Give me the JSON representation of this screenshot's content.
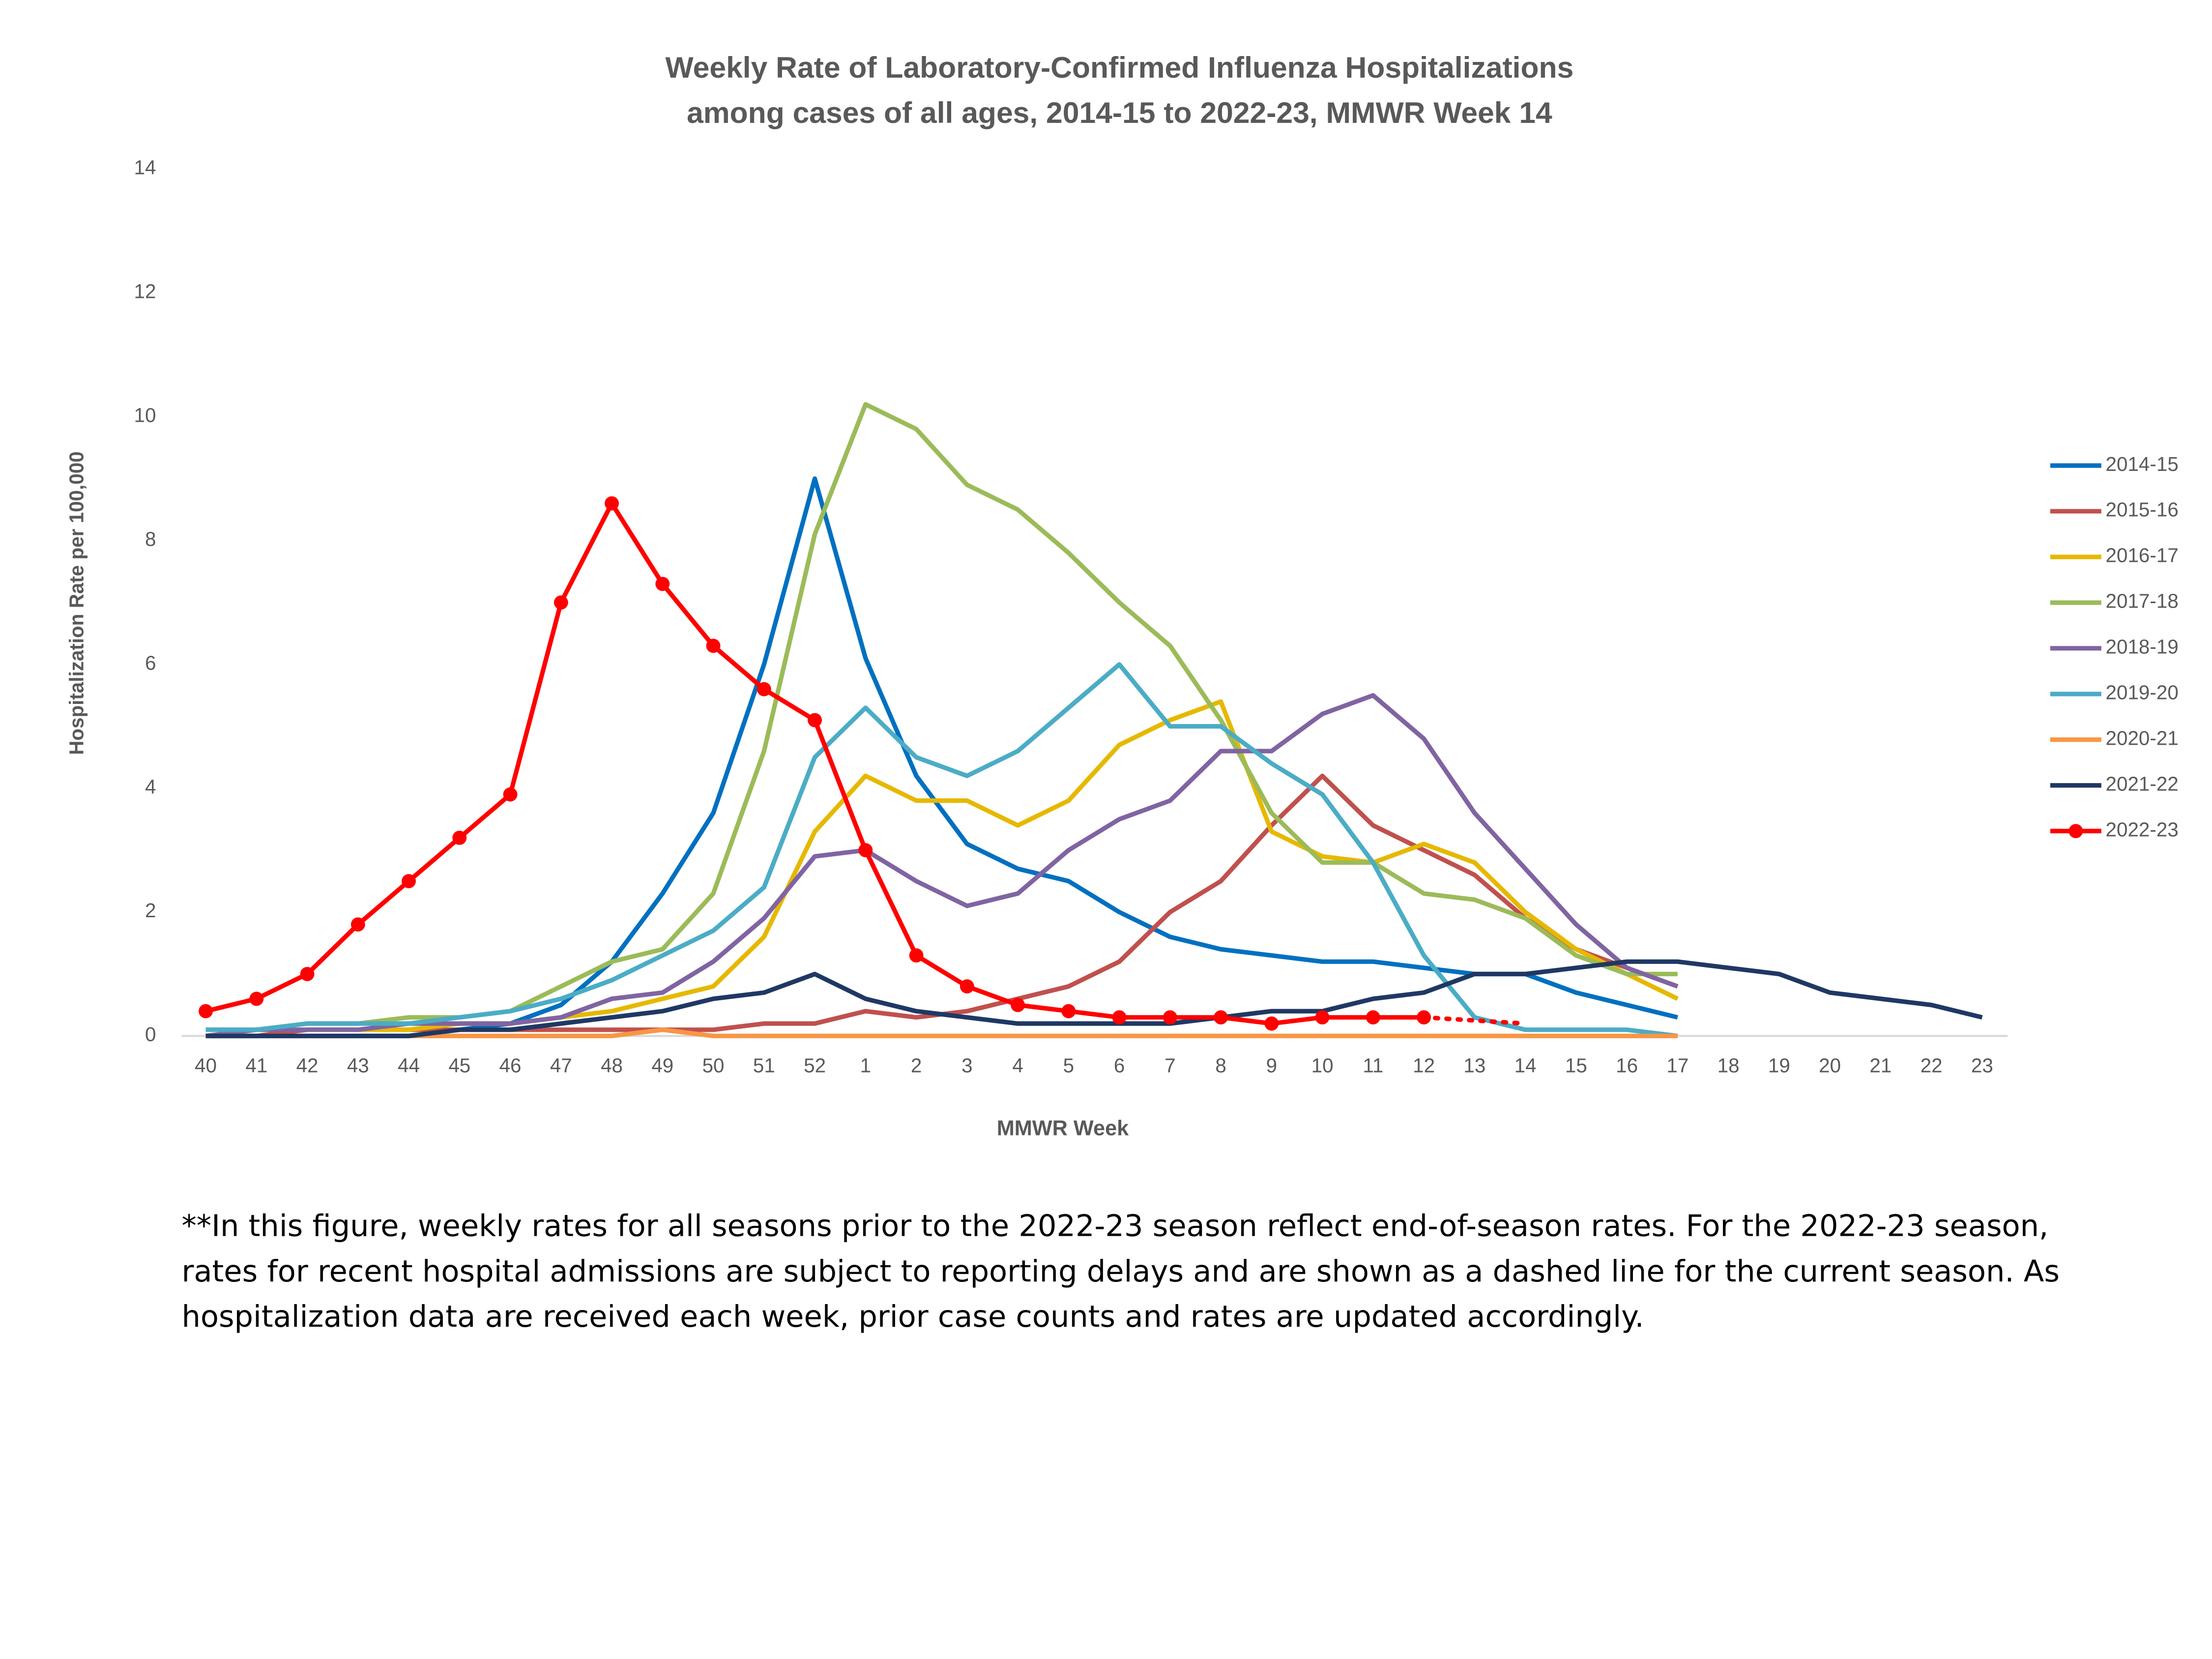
{
  "chart_data": {
    "type": "line",
    "title": [
      "Weekly Rate of Laboratory-Confirmed Influenza Hospitalizations",
      "among cases of all ages, 2014-15 to 2022-23, MMWR Week 14"
    ],
    "x_label": "MMWR Week",
    "y_label": "Hospitalization  Rate per 100,000",
    "categories": [
      "40",
      "41",
      "42",
      "43",
      "44",
      "45",
      "46",
      "47",
      "48",
      "49",
      "50",
      "51",
      "52",
      "1",
      "2",
      "3",
      "4",
      "5",
      "6",
      "7",
      "8",
      "9",
      "10",
      "11",
      "12",
      "13",
      "14",
      "15",
      "16",
      "17",
      "18",
      "19",
      "20",
      "21",
      "22",
      "23"
    ],
    "ylim": [
      0,
      14
    ],
    "yticks": [
      0,
      2,
      4,
      6,
      8,
      10,
      12,
      14
    ],
    "grid": false,
    "legend": "right",
    "series": [
      {
        "name": "2014-15",
        "color": "#0070c0",
        "values": [
          0,
          0,
          0,
          0,
          0,
          0.1,
          0.2,
          0.5,
          1.2,
          2.3,
          3.6,
          6.0,
          9.0,
          6.1,
          4.2,
          3.1,
          2.7,
          2.5,
          2.0,
          1.6,
          1.4,
          1.3,
          1.2,
          1.2,
          1.1,
          1.0,
          1.0,
          0.7,
          0.5,
          0.3,
          null,
          null,
          null,
          null,
          null,
          null
        ]
      },
      {
        "name": "2015-16",
        "color": "#c0504d",
        "values": [
          0,
          0,
          0.1,
          0.1,
          0.1,
          0.1,
          0.1,
          0.1,
          0.1,
          0.1,
          0.1,
          0.2,
          0.2,
          0.4,
          0.3,
          0.4,
          0.6,
          0.8,
          1.2,
          2.0,
          2.5,
          3.4,
          4.2,
          3.4,
          3.0,
          2.6,
          1.9,
          1.4,
          1.1,
          0.8,
          null,
          null,
          null,
          null,
          null,
          null
        ]
      },
      {
        "name": "2016-17",
        "color": "#e6b800",
        "values": [
          0,
          0.1,
          0.1,
          0.1,
          0.1,
          0.2,
          0.2,
          0.3,
          0.4,
          0.6,
          0.8,
          1.6,
          3.3,
          4.2,
          3.8,
          3.8,
          3.4,
          3.8,
          4.7,
          5.1,
          5.4,
          3.3,
          2.9,
          2.8,
          3.1,
          2.8,
          2.0,
          1.4,
          1.0,
          0.6,
          null,
          null,
          null,
          null,
          null,
          null
        ]
      },
      {
        "name": "2017-18",
        "color": "#9bbb59",
        "values": [
          0.1,
          0.1,
          0.2,
          0.2,
          0.3,
          0.3,
          0.4,
          0.8,
          1.2,
          1.4,
          2.3,
          4.6,
          8.1,
          10.2,
          9.8,
          8.9,
          8.5,
          7.8,
          7.0,
          6.3,
          5.1,
          3.6,
          2.8,
          2.8,
          2.3,
          2.2,
          1.9,
          1.3,
          1.0,
          1.0,
          null,
          null,
          null,
          null,
          null,
          null
        ]
      },
      {
        "name": "2018-19",
        "color": "#8064a2",
        "values": [
          0,
          0.1,
          0.1,
          0.1,
          0.2,
          0.2,
          0.2,
          0.3,
          0.6,
          0.7,
          1.2,
          1.9,
          2.9,
          3.0,
          2.5,
          2.1,
          2.3,
          3.0,
          3.5,
          3.8,
          4.6,
          4.6,
          5.2,
          5.5,
          4.8,
          3.6,
          2.7,
          1.8,
          1.1,
          0.8,
          null,
          null,
          null,
          null,
          null,
          null
        ]
      },
      {
        "name": "2019-20",
        "color": "#4bacc6",
        "values": [
          0.1,
          0.1,
          0.2,
          0.2,
          0.2,
          0.3,
          0.4,
          0.6,
          0.9,
          1.3,
          1.7,
          2.4,
          4.5,
          5.3,
          4.5,
          4.2,
          4.6,
          5.3,
          6.0,
          5.0,
          5.0,
          4.4,
          3.9,
          2.8,
          1.3,
          0.3,
          0.1,
          0.1,
          0.1,
          0,
          null,
          null,
          null,
          null,
          null,
          null
        ]
      },
      {
        "name": "2020-21",
        "color": "#f79646",
        "values": [
          0,
          0,
          0,
          0,
          0,
          0,
          0,
          0,
          0,
          0.1,
          0,
          0,
          0,
          0,
          0,
          0,
          0,
          0,
          0,
          0,
          0,
          0,
          0,
          0,
          0,
          0,
          0,
          0,
          0,
          0,
          null,
          null,
          null,
          null,
          null,
          null
        ]
      },
      {
        "name": "2021-22",
        "color": "#1f3864",
        "values": [
          0,
          0,
          0,
          0,
          0,
          0.1,
          0.1,
          0.2,
          0.3,
          0.4,
          0.6,
          0.7,
          1.0,
          0.6,
          0.4,
          0.3,
          0.2,
          0.2,
          0.2,
          0.2,
          0.3,
          0.4,
          0.4,
          0.6,
          0.7,
          1.0,
          1.0,
          1.1,
          1.2,
          1.2,
          1.1,
          1.0,
          0.7,
          0.6,
          0.5,
          0.3
        ]
      },
      {
        "name": "2022-23",
        "color": "#ff0000",
        "markers": true,
        "dotted_from": "12",
        "values": [
          0.4,
          0.6,
          1.0,
          1.8,
          2.5,
          3.2,
          3.9,
          7.0,
          8.6,
          7.3,
          6.3,
          5.6,
          5.1,
          3.0,
          1.3,
          0.8,
          0.5,
          0.4,
          0.3,
          0.3,
          0.3,
          0.2,
          0.3,
          0.3,
          0.3,
          0.25,
          0.2,
          null,
          null,
          null,
          null,
          null,
          null,
          null,
          null,
          null
        ]
      }
    ],
    "footnote": "**In this figure, weekly rates for all seasons prior to the 2022-23 season reflect end-of-season rates. For the 2022-23 season, rates for recent hospital admissions are subject to reporting delays and are shown as a dashed line for the current season. As hospitalization data are received each week, prior case counts and rates are updated accordingly."
  }
}
